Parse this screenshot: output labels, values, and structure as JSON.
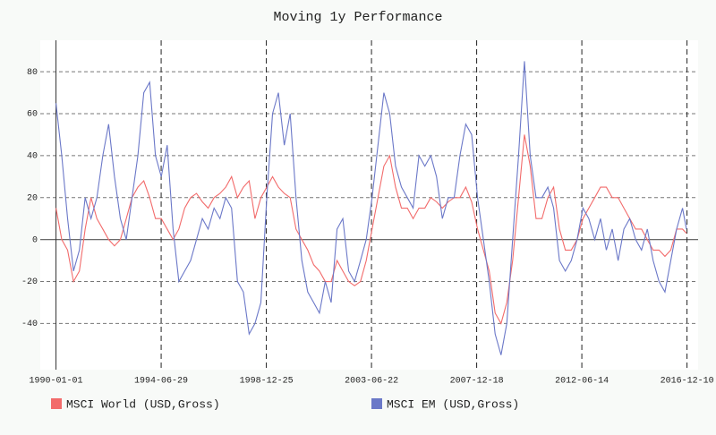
{
  "chart_data": {
    "type": "line",
    "title": "Moving 1y Performance",
    "x": [
      "1990-01-01",
      "1990-04-01",
      "1990-07-01",
      "1990-10-01",
      "1991-01-01",
      "1991-04-01",
      "1991-07-01",
      "1991-10-01",
      "1992-01-01",
      "1992-04-01",
      "1992-07-01",
      "1992-10-01",
      "1993-01-01",
      "1993-04-01",
      "1993-07-01",
      "1993-10-01",
      "1994-01-01",
      "1994-04-01",
      "1994-07-01",
      "1994-10-01",
      "1995-01-01",
      "1995-04-01",
      "1995-07-01",
      "1995-10-01",
      "1996-01-01",
      "1996-04-01",
      "1996-07-01",
      "1996-10-01",
      "1997-01-01",
      "1997-04-01",
      "1997-07-01",
      "1997-10-01",
      "1998-01-01",
      "1998-04-01",
      "1998-07-01",
      "1998-10-01",
      "1999-01-01",
      "1999-04-01",
      "1999-07-01",
      "1999-10-01",
      "2000-01-01",
      "2000-04-01",
      "2000-07-01",
      "2000-10-01",
      "2001-01-01",
      "2001-04-01",
      "2001-07-01",
      "2001-10-01",
      "2002-01-01",
      "2002-04-01",
      "2002-07-01",
      "2002-10-01",
      "2003-01-01",
      "2003-04-01",
      "2003-07-01",
      "2003-10-01",
      "2004-01-01",
      "2004-04-01",
      "2004-07-01",
      "2004-10-01",
      "2005-01-01",
      "2005-04-01",
      "2005-07-01",
      "2005-10-01",
      "2006-01-01",
      "2006-04-01",
      "2006-07-01",
      "2006-10-01",
      "2007-01-01",
      "2007-04-01",
      "2007-07-01",
      "2007-10-01",
      "2008-01-01",
      "2008-04-01",
      "2008-07-01",
      "2008-10-01",
      "2009-01-01",
      "2009-04-01",
      "2009-07-01",
      "2009-10-01",
      "2010-01-01",
      "2010-04-01",
      "2010-07-01",
      "2010-10-01",
      "2011-01-01",
      "2011-04-01",
      "2011-07-01",
      "2011-10-01",
      "2012-01-01",
      "2012-04-01",
      "2012-07-01",
      "2012-10-01",
      "2013-01-01",
      "2013-04-01",
      "2013-07-01",
      "2013-10-01",
      "2014-01-01",
      "2014-04-01",
      "2014-07-01",
      "2014-10-01",
      "2015-01-01",
      "2015-04-01",
      "2015-07-01",
      "2015-10-01",
      "2016-01-01",
      "2016-04-01",
      "2016-07-01",
      "2016-10-01",
      "2016-12-01"
    ],
    "series": [
      {
        "name": "MSCI World (USD,Gross)",
        "color": "#f26b6b",
        "values": [
          15,
          0,
          -5,
          -20,
          -15,
          5,
          20,
          10,
          5,
          0,
          -3,
          0,
          10,
          20,
          25,
          28,
          20,
          10,
          10,
          5,
          0,
          5,
          15,
          20,
          22,
          18,
          15,
          20,
          22,
          25,
          30,
          20,
          25,
          28,
          10,
          20,
          25,
          30,
          25,
          22,
          20,
          5,
          0,
          -5,
          -12,
          -15,
          -20,
          -20,
          -10,
          -15,
          -20,
          -22,
          -20,
          -10,
          5,
          20,
          35,
          40,
          25,
          15,
          15,
          10,
          15,
          15,
          20,
          18,
          15,
          18,
          20,
          20,
          25,
          18,
          5,
          -5,
          -15,
          -35,
          -40,
          -30,
          -10,
          20,
          50,
          35,
          10,
          10,
          20,
          25,
          5,
          -5,
          -5,
          0,
          10,
          15,
          20,
          25,
          25,
          20,
          20,
          15,
          10,
          5,
          5,
          0,
          -5,
          -5,
          -8,
          -5,
          5,
          5,
          3
        ]
      },
      {
        "name": "MSCI EM (USD,Gross)",
        "color": "#6b78c8",
        "values": [
          65,
          40,
          10,
          -15,
          -5,
          20,
          10,
          20,
          40,
          55,
          30,
          10,
          0,
          20,
          40,
          70,
          75,
          40,
          30,
          45,
          5,
          -20,
          -15,
          -10,
          0,
          10,
          5,
          15,
          10,
          20,
          15,
          -20,
          -25,
          -45,
          -40,
          -30,
          20,
          60,
          70,
          45,
          60,
          20,
          -10,
          -25,
          -30,
          -35,
          -20,
          -30,
          5,
          10,
          -15,
          -20,
          -10,
          0,
          20,
          45,
          70,
          60,
          35,
          25,
          20,
          15,
          40,
          35,
          40,
          30,
          10,
          20,
          20,
          40,
          55,
          50,
          20,
          0,
          -20,
          -45,
          -55,
          -40,
          0,
          40,
          85,
          40,
          20,
          20,
          25,
          15,
          -10,
          -15,
          -10,
          0,
          15,
          10,
          0,
          10,
          -5,
          5,
          -10,
          5,
          10,
          0,
          -5,
          5,
          -10,
          -20,
          -25,
          -10,
          5,
          15,
          5
        ]
      }
    ],
    "xlim": [
      "1989-05-01",
      "2017-06-01"
    ],
    "xticks": [
      "1990-01-01",
      "1994-06-29",
      "1998-12-25",
      "2003-06-22",
      "2007-12-18",
      "2012-06-14",
      "2016-12-10"
    ],
    "ylim": [
      -62,
      95
    ],
    "yticks": [
      -40,
      -20,
      0,
      20,
      40,
      60,
      80
    ],
    "grid": true
  }
}
